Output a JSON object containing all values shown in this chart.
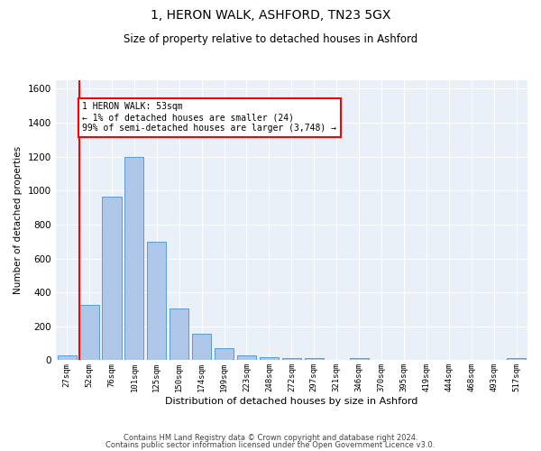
{
  "title": "1, HERON WALK, ASHFORD, TN23 5GX",
  "subtitle": "Size of property relative to detached houses in Ashford",
  "xlabel": "Distribution of detached houses by size in Ashford",
  "ylabel": "Number of detached properties",
  "bar_labels": [
    "27sqm",
    "52sqm",
    "76sqm",
    "101sqm",
    "125sqm",
    "150sqm",
    "174sqm",
    "199sqm",
    "223sqm",
    "248sqm",
    "272sqm",
    "297sqm",
    "321sqm",
    "346sqm",
    "370sqm",
    "395sqm",
    "419sqm",
    "444sqm",
    "468sqm",
    "493sqm",
    "517sqm"
  ],
  "bar_values": [
    30,
    325,
    965,
    1200,
    700,
    305,
    155,
    70,
    30,
    20,
    15,
    15,
    0,
    15,
    0,
    0,
    0,
    0,
    0,
    0,
    15
  ],
  "bar_color": "#aec6e8",
  "bar_edge_color": "#5b9bd5",
  "red_line_index": 1,
  "annotation_text": "1 HERON WALK: 53sqm\n← 1% of detached houses are smaller (24)\n99% of semi-detached houses are larger (3,748) →",
  "annotation_box_color": "white",
  "annotation_edge_color": "red",
  "ylim": [
    0,
    1650
  ],
  "yticks": [
    0,
    200,
    400,
    600,
    800,
    1000,
    1200,
    1400,
    1600
  ],
  "bg_color": "#eaf0f8",
  "grid_color": "white",
  "title_fontsize": 10,
  "subtitle_fontsize": 8.5,
  "footer1": "Contains HM Land Registry data © Crown copyright and database right 2024.",
  "footer2": "Contains public sector information licensed under the Open Government Licence v3.0."
}
